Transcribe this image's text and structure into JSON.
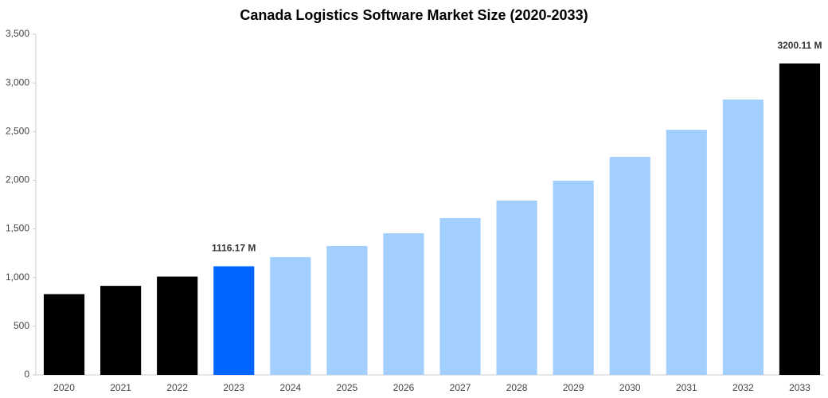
{
  "chart_data": {
    "type": "bar",
    "title": "Canada Logistics Software Market Size (2020-2033)",
    "categories": [
      "2020",
      "2021",
      "2022",
      "2023",
      "2024",
      "2025",
      "2026",
      "2027",
      "2028",
      "2029",
      "2030",
      "2031",
      "2032",
      "2033"
    ],
    "values": [
      830,
      915,
      1010,
      1116.17,
      1210,
      1325,
      1455,
      1611,
      1791,
      1995,
      2240,
      2518,
      2829,
      3200.11
    ],
    "value_labels": [
      null,
      null,
      null,
      "1116.17 M",
      null,
      null,
      null,
      null,
      null,
      null,
      null,
      null,
      null,
      "3200.11 M"
    ],
    "colors": [
      "#000000",
      "#000000",
      "#000000",
      "#0066ff",
      "#a3cfff",
      "#a3cfff",
      "#a3cfff",
      "#a3cfff",
      "#a3cfff",
      "#a3cfff",
      "#a3cfff",
      "#a3cfff",
      "#a3cfff",
      "#000000"
    ],
    "ylim": [
      0,
      3500
    ],
    "yticks": [
      0,
      500,
      {
        "value": 1000,
        "label": "1,000"
      },
      {
        "value": 1500,
        "label": "1,500"
      },
      {
        "value": 2000,
        "label": "2,000"
      },
      {
        "value": 2500,
        "label": "2,500"
      },
      {
        "value": 3000,
        "label": "3,000"
      },
      {
        "value": 3500,
        "label": "3,500"
      }
    ],
    "grid": false
  }
}
